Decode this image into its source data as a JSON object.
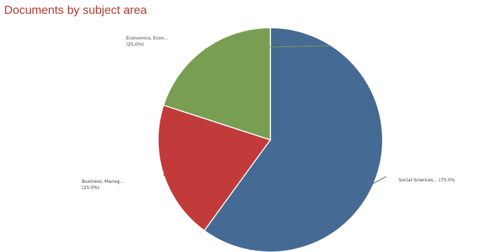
{
  "chart_data": {
    "type": "pie",
    "title": "Documents by subject area",
    "slices": [
      {
        "label": "Social Sciences...",
        "percent_text": "(75.0%",
        "value": 75.0,
        "color": "#456a93"
      },
      {
        "label": "Business, Manag...",
        "percent_text": "(25.0%)",
        "value": 25.0,
        "color": "#c23b3b"
      },
      {
        "label": "Economics, Econ...",
        "percent_text": "(25.0%)",
        "value": 25.0,
        "color": "#789e52"
      }
    ]
  }
}
